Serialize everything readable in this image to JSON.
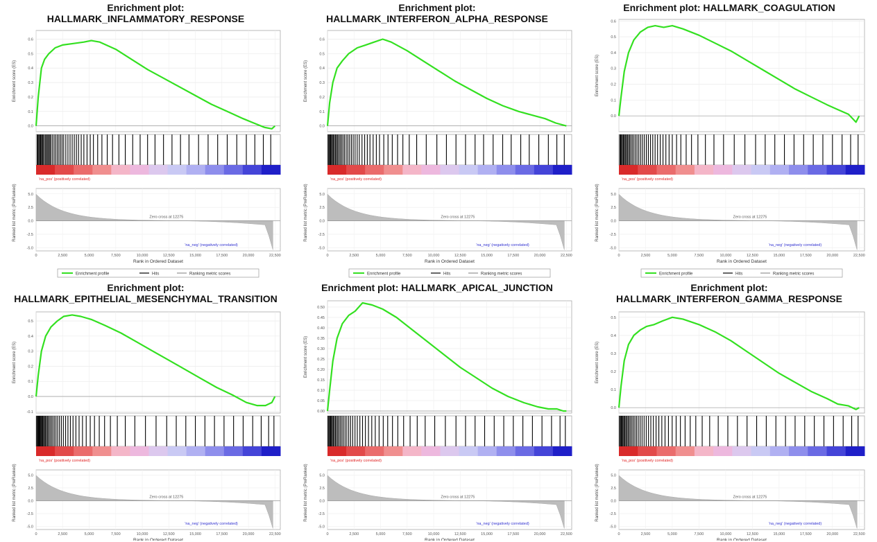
{
  "legend": {
    "profile": "Enrichment profile",
    "hits": "Hits",
    "metric": "Ranking metric scores"
  },
  "common": {
    "es_ylabel": "Enrichment score (ES)",
    "rank_ylabel": "Ranked list metric (PreRanked)",
    "xlabel": "Rank in Ordered Dataset",
    "pos_label": "'na_pos' (positively correlated)",
    "neg_label": "'na_neg' (negatively correlated)",
    "zero_cross": "Zero cross at 12275",
    "x_ticks": [
      "0",
      "2,500",
      "5,000",
      "7,500",
      "10,000",
      "12,500",
      "15,000",
      "17,500",
      "20,000",
      "22,500"
    ],
    "x_tick_values": [
      0,
      2500,
      5000,
      7500,
      10000,
      12500,
      15000,
      17500,
      20000,
      22500
    ],
    "rank_ticks": [
      "5.0",
      "2.5",
      "0.0",
      "-2.5",
      "-5.0"
    ],
    "rank_tick_values": [
      5,
      2.5,
      0,
      -2.5,
      -5
    ],
    "xlim": [
      0,
      23000
    ],
    "rank_ylim": [
      -5.6,
      6.0
    ],
    "colors": {
      "profile": "#33e020",
      "metric": "#bdbdbd",
      "pos_text": "#e02020",
      "neg_text": "#3030d0",
      "hit": "#000000"
    }
  },
  "chart_data": [
    {
      "type": "line",
      "title_lines": [
        "Enrichment plot:",
        "HALLMARK_INFLAMMATORY_RESPONSE"
      ],
      "y_ticks": [
        "0.6",
        "0.5",
        "0.4",
        "0.3",
        "0.2",
        "0.1",
        "0.0"
      ],
      "y_tick_values": [
        0.6,
        0.5,
        0.4,
        0.3,
        0.2,
        0.1,
        0.0
      ],
      "ylim": [
        -0.04,
        0.66
      ],
      "profile": {
        "x": [
          0,
          200,
          500,
          800,
          1200,
          1800,
          2500,
          3500,
          4500,
          5200,
          6000,
          7500,
          9000,
          10500,
          12000,
          13500,
          15000,
          16500,
          18000,
          19500,
          20500,
          21500,
          22200,
          22500
        ],
        "y": [
          0,
          0.2,
          0.4,
          0.46,
          0.5,
          0.54,
          0.56,
          0.57,
          0.58,
          0.59,
          0.58,
          0.53,
          0.46,
          0.39,
          0.33,
          0.27,
          0.21,
          0.15,
          0.1,
          0.05,
          0.02,
          -0.01,
          -0.02,
          0.0
        ]
      },
      "hits": [
        100,
        180,
        260,
        350,
        430,
        520,
        600,
        680,
        800,
        900,
        1000,
        1100,
        1200,
        1300,
        1400,
        1550,
        1700,
        1850,
        2000,
        2150,
        2300,
        2450,
        2600,
        2800,
        3000,
        3200,
        3400,
        3600,
        3800,
        4000,
        4250,
        4500,
        4800,
        5100,
        5400,
        5800,
        6200,
        6700,
        7200,
        7800,
        8400,
        9100,
        9800,
        10500,
        11200,
        12000,
        12800,
        13600,
        14400,
        15300,
        16200,
        17100,
        18000,
        18900,
        19800,
        20600,
        21400,
        22100
      ]
    },
    {
      "type": "line",
      "title_lines": [
        "Enrichment plot:",
        "HALLMARK_INTERFERON_ALPHA_RESPONSE"
      ],
      "y_ticks": [
        "0.6",
        "0.5",
        "0.4",
        "0.3",
        "0.2",
        "0.1",
        "0.0"
      ],
      "y_tick_values": [
        0.6,
        0.5,
        0.4,
        0.3,
        0.2,
        0.1,
        0.0
      ],
      "ylim": [
        -0.04,
        0.66
      ],
      "profile": {
        "x": [
          0,
          200,
          500,
          900,
          1400,
          2000,
          2800,
          3600,
          4400,
          5200,
          6000,
          7500,
          9000,
          10500,
          12000,
          13500,
          15000,
          16500,
          18000,
          19500,
          20500,
          21500,
          22500
        ],
        "y": [
          0,
          0.16,
          0.3,
          0.4,
          0.45,
          0.5,
          0.54,
          0.56,
          0.58,
          0.6,
          0.58,
          0.52,
          0.45,
          0.38,
          0.31,
          0.25,
          0.19,
          0.14,
          0.1,
          0.07,
          0.05,
          0.02,
          0.0
        ]
      },
      "hits": [
        60,
        140,
        220,
        300,
        380,
        470,
        560,
        660,
        760,
        860,
        960,
        1080,
        1200,
        1330,
        1460,
        1600,
        1760,
        1920,
        2080,
        2250,
        2420,
        2600,
        2800,
        3000,
        3250,
        3500,
        3750,
        4000,
        4300,
        4600,
        4900,
        5300,
        5700,
        6100,
        6600,
        7100,
        7700,
        8400,
        9300,
        10300,
        11200,
        12100,
        13000,
        13900,
        14700,
        15600,
        16500,
        17300,
        18200,
        19000,
        19900,
        20800,
        21600,
        22300
      ]
    },
    {
      "type": "line",
      "title_lines": [
        "Enrichment plot: HALLMARK_COAGULATION"
      ],
      "y_ticks": [
        "0.6",
        "0.5",
        "0.4",
        "0.3",
        "0.2",
        "0.1",
        "0.0"
      ],
      "y_tick_values": [
        0.6,
        0.5,
        0.4,
        0.3,
        0.2,
        0.1,
        0.0
      ],
      "ylim": [
        -0.1,
        0.61
      ],
      "profile": {
        "x": [
          0,
          200,
          500,
          900,
          1400,
          2000,
          2700,
          3400,
          4200,
          5000,
          6000,
          7500,
          9000,
          10500,
          12000,
          13500,
          15000,
          16500,
          18000,
          19500,
          20500,
          21500,
          22200,
          22500
        ],
        "y": [
          0,
          0.12,
          0.28,
          0.4,
          0.48,
          0.53,
          0.56,
          0.57,
          0.56,
          0.57,
          0.55,
          0.51,
          0.46,
          0.41,
          0.35,
          0.29,
          0.23,
          0.17,
          0.12,
          0.07,
          0.04,
          0.01,
          -0.04,
          0.0
        ]
      },
      "hits": [
        80,
        160,
        240,
        330,
        420,
        510,
        600,
        700,
        800,
        900,
        1010,
        1130,
        1260,
        1400,
        1550,
        1700,
        1860,
        2030,
        2200,
        2380,
        2570,
        2760,
        2960,
        3170,
        3390,
        3620,
        3870,
        4130,
        4400,
        4700,
        5000,
        5400,
        5800,
        6300,
        6800,
        7400,
        8100,
        8900,
        9800,
        10800,
        11800,
        12800,
        13700,
        14600,
        15500,
        16400,
        17300,
        18200,
        19100,
        20000,
        20900,
        21700,
        22400
      ]
    },
    {
      "type": "line",
      "title_lines": [
        "Enrichment plot:",
        "HALLMARK_EPITHELIAL_MESENCHYMAL_TRANSITION"
      ],
      "y_ticks": [
        "0.5",
        "0.4",
        "0.3",
        "0.2",
        "0.1",
        "0.0",
        "-0.1"
      ],
      "y_tick_values": [
        0.5,
        0.4,
        0.3,
        0.2,
        0.1,
        0.0,
        -0.1
      ],
      "ylim": [
        -0.11,
        0.56
      ],
      "profile": {
        "x": [
          0,
          200,
          500,
          900,
          1400,
          2000,
          2600,
          3400,
          4200,
          5200,
          6500,
          8000,
          9500,
          11000,
          12500,
          14000,
          15500,
          17000,
          18500,
          19800,
          20800,
          21600,
          22200,
          22500
        ],
        "y": [
          0,
          0.14,
          0.3,
          0.4,
          0.46,
          0.5,
          0.53,
          0.54,
          0.53,
          0.51,
          0.47,
          0.42,
          0.36,
          0.3,
          0.24,
          0.18,
          0.12,
          0.06,
          0.01,
          -0.04,
          -0.06,
          -0.06,
          -0.04,
          0.0
        ]
      },
      "hits": [
        50,
        120,
        190,
        260,
        330,
        400,
        470,
        550,
        630,
        710,
        800,
        890,
        990,
        1090,
        1200,
        1320,
        1450,
        1580,
        1720,
        1870,
        2030,
        2200,
        2380,
        2570,
        2780,
        3000,
        3230,
        3480,
        3750,
        4050,
        4370,
        4720,
        5100,
        5500,
        5950,
        6450,
        7000,
        7650,
        8400,
        9300,
        10300,
        11300,
        12300,
        13200,
        14100,
        15000,
        15900,
        16800,
        17700,
        18600,
        19500,
        20400,
        21200,
        21900,
        22400
      ]
    },
    {
      "type": "line",
      "title_lines": [
        "Enrichment plot: HALLMARK_APICAL_JUNCTION"
      ],
      "y_ticks": [
        "0.50",
        "0.45",
        "0.40",
        "0.35",
        "0.30",
        "0.25",
        "0.20",
        "0.15",
        "0.10",
        "0.05",
        "0.00"
      ],
      "y_tick_values": [
        0.5,
        0.45,
        0.4,
        0.35,
        0.3,
        0.25,
        0.2,
        0.15,
        0.1,
        0.05,
        0.0
      ],
      "ylim": [
        -0.01,
        0.53
      ],
      "profile": {
        "x": [
          0,
          200,
          500,
          900,
          1400,
          2000,
          2600,
          3300,
          4200,
          5200,
          6500,
          8000,
          9500,
          11000,
          12500,
          14000,
          15500,
          17000,
          18500,
          19800,
          20800,
          21600,
          22200,
          22500
        ],
        "y": [
          0,
          0.1,
          0.24,
          0.35,
          0.42,
          0.46,
          0.48,
          0.52,
          0.51,
          0.49,
          0.45,
          0.39,
          0.33,
          0.27,
          0.21,
          0.16,
          0.11,
          0.07,
          0.04,
          0.02,
          0.01,
          0.01,
          0.0,
          0.0
        ]
      },
      "hits": [
        50,
        130,
        210,
        290,
        370,
        460,
        550,
        650,
        750,
        860,
        970,
        1090,
        1220,
        1360,
        1500,
        1660,
        1820,
        2000,
        2180,
        2380,
        2590,
        2810,
        3050,
        3300,
        3570,
        3860,
        4170,
        4500,
        4860,
        5250,
        5670,
        6120,
        6620,
        7170,
        7780,
        8450,
        9200,
        10100,
        11100,
        12100,
        13000,
        13900,
        14800,
        15700,
        16600,
        17500,
        18400,
        19300,
        20200,
        21100,
        21900,
        22400
      ]
    },
    {
      "type": "line",
      "title_lines": [
        "Enrichment plot:",
        "HALLMARK_INTERFERON_GAMMA_RESPONSE"
      ],
      "y_ticks": [
        "0.5",
        "0.4",
        "0.3",
        "0.2",
        "0.1",
        "0.0"
      ],
      "y_tick_values": [
        0.5,
        0.4,
        0.3,
        0.2,
        0.1,
        0.0
      ],
      "ylim": [
        -0.03,
        0.53
      ],
      "profile": {
        "x": [
          0,
          200,
          500,
          900,
          1400,
          2000,
          2600,
          3300,
          4100,
          5000,
          6000,
          7500,
          9000,
          10500,
          12000,
          13500,
          15000,
          16500,
          18000,
          19500,
          20500,
          21500,
          22200,
          22500
        ],
        "y": [
          0,
          0.12,
          0.26,
          0.35,
          0.4,
          0.43,
          0.45,
          0.46,
          0.48,
          0.5,
          0.49,
          0.46,
          0.42,
          0.37,
          0.31,
          0.25,
          0.19,
          0.14,
          0.09,
          0.05,
          0.02,
          0.01,
          -0.01,
          0.0
        ]
      },
      "hits": [
        60,
        140,
        220,
        300,
        380,
        470,
        560,
        660,
        760,
        870,
        980,
        1100,
        1230,
        1370,
        1510,
        1660,
        1820,
        1990,
        2170,
        2360,
        2560,
        2770,
        2990,
        3230,
        3480,
        3740,
        4020,
        4320,
        4640,
        4990,
        5360,
        5760,
        6200,
        6680,
        7200,
        7800,
        8500,
        9300,
        10200,
        11100,
        12000,
        12900,
        13800,
        14700,
        15600,
        16500,
        17400,
        18300,
        19200,
        20100,
        21000,
        21800,
        22400
      ]
    }
  ]
}
